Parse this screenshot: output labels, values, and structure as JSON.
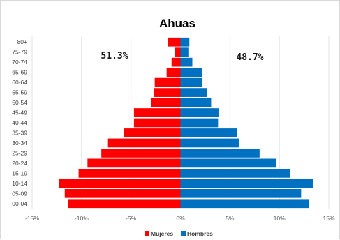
{
  "chart_data": {
    "type": "bar",
    "orientation": "horizontal",
    "title": "Ahuas",
    "categories": [
      "80+",
      "75-79",
      "70-74",
      "65-69",
      "60-64",
      "55-59",
      "50-54",
      "45-49",
      "40-44",
      "35-39",
      "30-34",
      "25-29",
      "20-24",
      "15-19",
      "10-14",
      "05-09",
      "00-04"
    ],
    "series": [
      {
        "name": "Mujeres",
        "color": "#ff0000",
        "values": [
          1.3,
          0.6,
          0.9,
          1.4,
          2.6,
          2.7,
          3.0,
          4.7,
          4.7,
          5.7,
          7.4,
          8.0,
          9.4,
          10.3,
          12.3,
          11.7,
          11.4
        ]
      },
      {
        "name": "Hombres",
        "color": "#0070c0",
        "values": [
          0.9,
          0.8,
          1.2,
          2.2,
          2.2,
          2.7,
          3.1,
          3.9,
          3.8,
          5.7,
          5.9,
          8.0,
          9.7,
          11.1,
          13.4,
          12.2,
          13.0
        ]
      }
    ],
    "annotations": {
      "mujeres_pct": "51.3%",
      "hombres_pct": "48.7%"
    },
    "xlim": [
      -15,
      15
    ],
    "xticks": [
      -15,
      -10,
      -5,
      0,
      5,
      10,
      15
    ],
    "xtick_labels": [
      "-15%",
      "-10%",
      "-5%",
      "0%",
      "5%",
      "10%",
      "15%"
    ],
    "grid": "vertical",
    "legend": "bottom"
  }
}
